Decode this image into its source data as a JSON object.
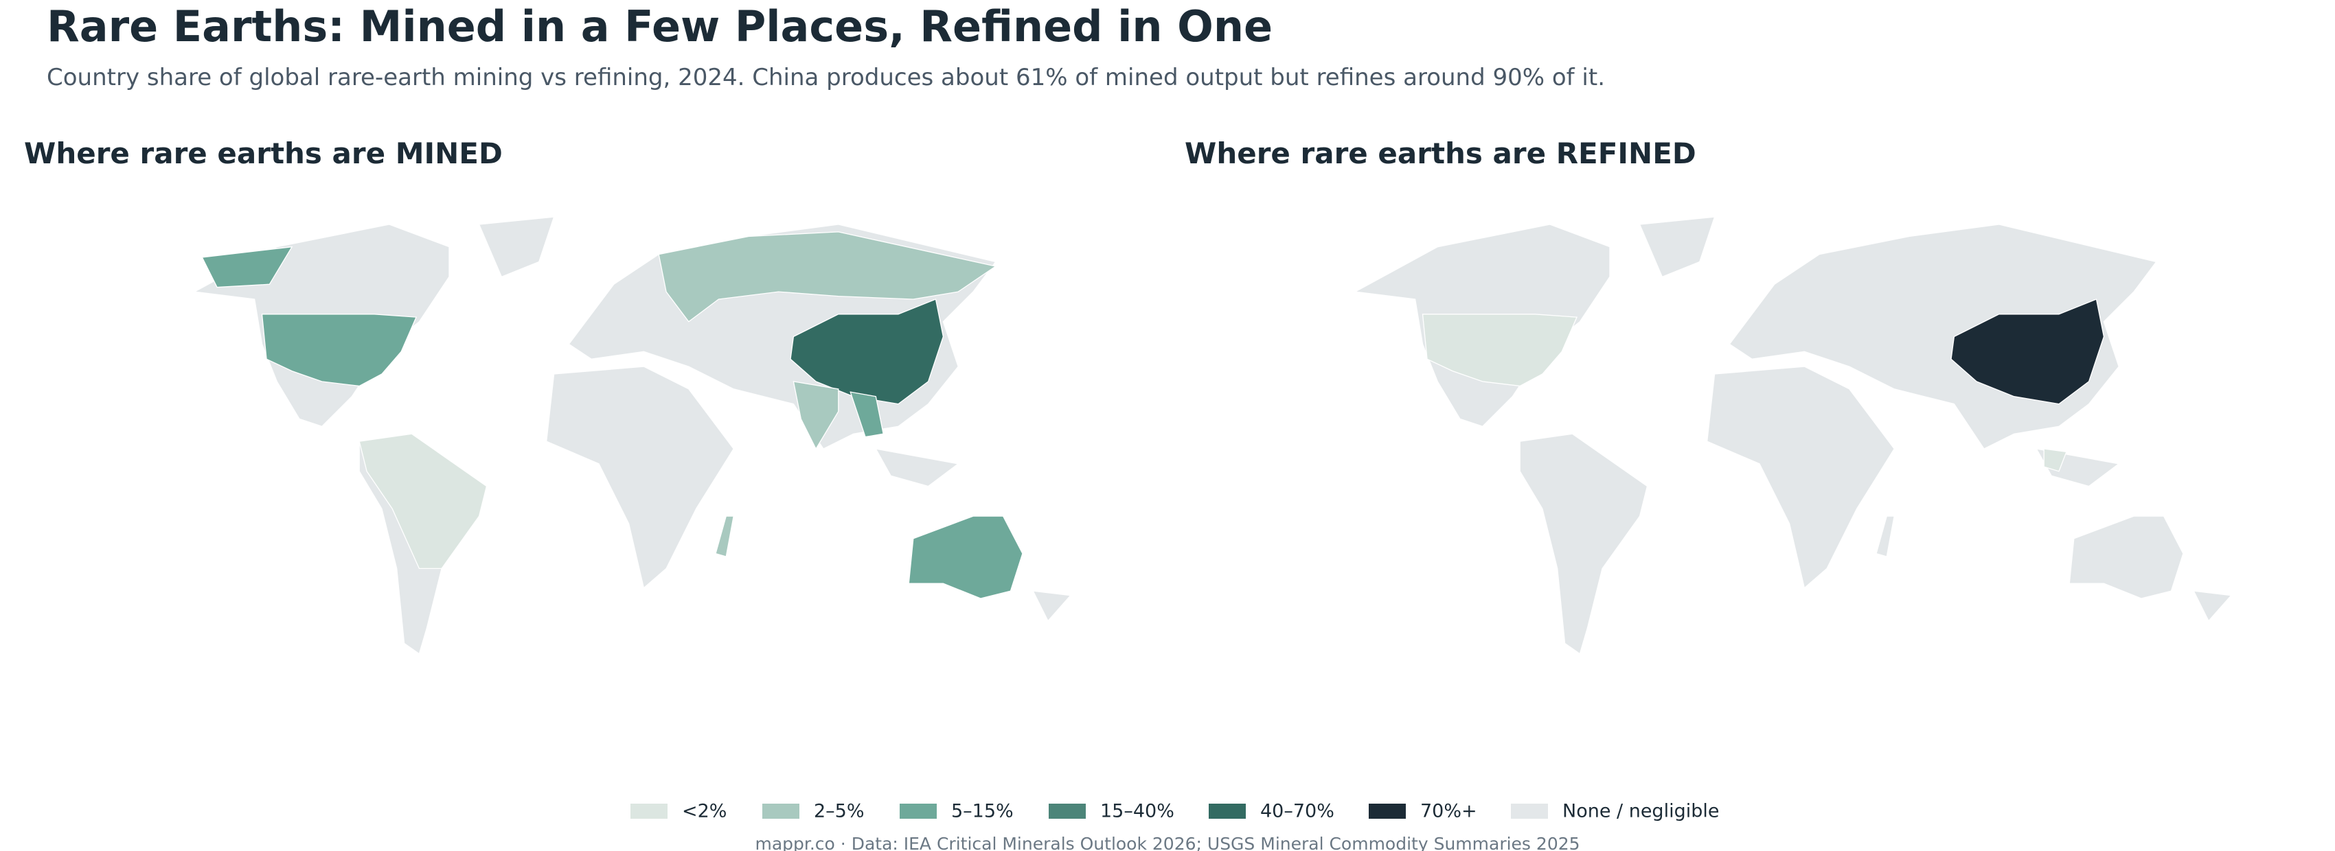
{
  "header": {
    "title": "Rare Earths: Mined in a Few Places, Refined in One",
    "subtitle": "Country share of global rare-earth mining vs refining, 2024. China produces about 61% of mined output but refines around 90% of it."
  },
  "panels": [
    {
      "title": "Where rare earths are MINED"
    },
    {
      "title": "Where rare earths are REFINED"
    }
  ],
  "legend": [
    {
      "label": "<2%",
      "color": "#dce6e1"
    },
    {
      "label": "2–5%",
      "color": "#a8c9bf"
    },
    {
      "label": "5–15%",
      "color": "#6ea99a"
    },
    {
      "label": "15–40%",
      "color": "#4c8579"
    },
    {
      "label": "40–70%",
      "color": "#336b62"
    },
    {
      "label": "70%+",
      "color": "#1c2b36"
    },
    {
      "label": "None / negligible",
      "color": "#e3e7e9"
    }
  ],
  "footer": "mappr.co · Data: IEA Critical Minerals Outlook 2026; USGS Mineral Commodity Summaries 2025"
}
